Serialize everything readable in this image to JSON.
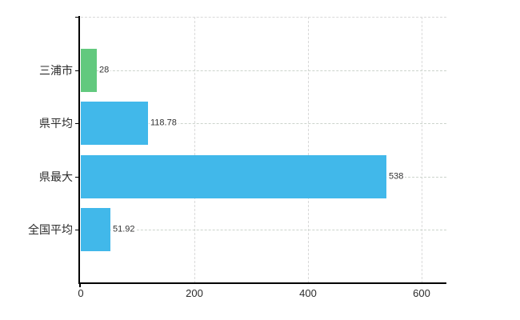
{
  "chart_data": {
    "type": "bar",
    "orientation": "horizontal",
    "title": "",
    "xlabel": "",
    "ylabel": "",
    "categories": [
      "三浦市",
      "県平均",
      "県最大",
      "全国平均"
    ],
    "values": [
      28,
      118.78,
      538,
      51.92
    ],
    "value_labels": [
      "28",
      "118.78",
      "538",
      "51.92"
    ],
    "bar_colors": [
      "#62c97e",
      "#41b8ea",
      "#41b8ea",
      "#41b8ea"
    ],
    "x_ticks": [
      0,
      200,
      400,
      600
    ],
    "x_tick_labels": [
      "0",
      "200",
      "400",
      "600"
    ],
    "xlim": [
      0,
      643
    ],
    "grid": true,
    "legend": false,
    "colors": {
      "axis": "#000000",
      "vertical_grid": "#d9d9d9",
      "horizontal_grid": "#ccd4cc",
      "text": "#2b2b2b",
      "value_text": "#333333"
    }
  }
}
